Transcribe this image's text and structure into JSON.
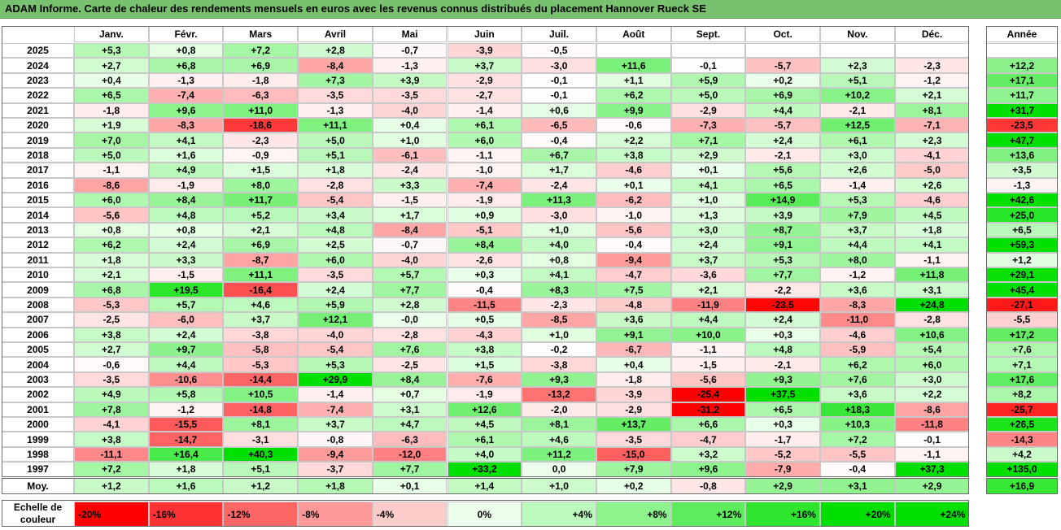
{
  "title": "ADAM Informe. Carte de chaleur des rendements mensuels en euros avec les revenus connus distribués du placement Hannover Rueck SE",
  "chart_data": {
    "type": "heatmap",
    "columns": [
      "Janv.",
      "Févr.",
      "Mars",
      "Avril",
      "Mai",
      "Juin",
      "Juil.",
      "Août",
      "Sept.",
      "Oct.",
      "Nov.",
      "Déc."
    ],
    "year_column": "Année",
    "rows": [
      {
        "label": "2025",
        "values": [
          "+5,3",
          "+0,8",
          "+7,2",
          "+2,8",
          "-0,7",
          "-3,9",
          "-0,5",
          "",
          "",
          "",
          "",
          ""
        ],
        "year": ""
      },
      {
        "label": "2024",
        "values": [
          "+2,7",
          "+6,8",
          "+6,9",
          "-8,4",
          "-1,3",
          "+3,7",
          "-3,0",
          "+11,6",
          "-0,1",
          "-5,7",
          "+2,3",
          "-2,3"
        ],
        "year": "+12,2"
      },
      {
        "label": "2023",
        "values": [
          "+0,4",
          "-1,3",
          "-1,8",
          "+7,3",
          "+3,9",
          "-2,9",
          "-0,1",
          "+1,1",
          "+5,9",
          "+0,2",
          "+5,1",
          "-1,2"
        ],
        "year": "+17,1"
      },
      {
        "label": "2022",
        "values": [
          "+6,5",
          "-7,4",
          "-6,3",
          "-3,5",
          "-3,5",
          "-2,7",
          "-0,1",
          "+6,2",
          "+5,0",
          "+6,9",
          "+10,2",
          "+2,1"
        ],
        "year": "+11,7"
      },
      {
        "label": "2021",
        "values": [
          "-1,8",
          "+9,6",
          "+11,0",
          "-1,3",
          "-4,0",
          "-1,4",
          "+0,6",
          "+9,9",
          "-2,9",
          "+4,4",
          "-2,1",
          "+8,1"
        ],
        "year": "+31,7"
      },
      {
        "label": "2020",
        "values": [
          "+1,9",
          "-8,3",
          "-18,6",
          "+11,1",
          "+0,4",
          "+6,1",
          "-6,5",
          "-0,6",
          "-7,3",
          "-5,7",
          "+12,5",
          "-7,1"
        ],
        "year": "-23,5"
      },
      {
        "label": "2019",
        "values": [
          "+7,0",
          "+4,1",
          "-2,3",
          "+5,0",
          "+1,0",
          "+6,0",
          "-0,4",
          "+2,2",
          "+7,1",
          "+2,4",
          "+6,1",
          "+2,3"
        ],
        "year": "+47,7"
      },
      {
        "label": "2018",
        "values": [
          "+5,0",
          "+1,6",
          "-0,9",
          "+5,1",
          "-6,1",
          "-1,1",
          "+6,7",
          "+3,8",
          "+2,9",
          "-2,1",
          "+3,0",
          "-4,1"
        ],
        "year": "+13,6"
      },
      {
        "label": "2017",
        "values": [
          "-1,1",
          "+4,9",
          "+1,5",
          "+1,8",
          "-2,4",
          "-1,0",
          "+1,7",
          "-4,6",
          "+0,1",
          "+5,6",
          "+2,6",
          "-5,0"
        ],
        "year": "+3,5"
      },
      {
        "label": "2016",
        "values": [
          "-8,6",
          "-1,9",
          "+8,0",
          "-2,8",
          "+3,3",
          "-7,4",
          "-2,4",
          "+0,1",
          "+4,1",
          "+6,5",
          "-1,4",
          "+2,6"
        ],
        "year": "-1,3"
      },
      {
        "label": "2015",
        "values": [
          "+6,0",
          "+8,4",
          "+11,7",
          "-5,4",
          "-1,5",
          "-1,9",
          "+11,3",
          "-6,2",
          "+1,0",
          "+14,9",
          "+5,3",
          "-4,6"
        ],
        "year": "+42,6"
      },
      {
        "label": "2014",
        "values": [
          "-5,6",
          "+4,8",
          "+5,2",
          "+3,4",
          "+1,7",
          "+0,9",
          "-3,0",
          "-1,0",
          "+1,3",
          "+3,9",
          "+7,9",
          "+4,5"
        ],
        "year": "+25,0"
      },
      {
        "label": "2013",
        "values": [
          "+0,8",
          "+0,8",
          "+2,1",
          "+4,8",
          "-8,4",
          "-5,1",
          "+1,0",
          "-5,6",
          "+3,0",
          "+8,7",
          "+3,7",
          "+1,8"
        ],
        "year": "+6,5"
      },
      {
        "label": "2012",
        "values": [
          "+6,2",
          "+2,4",
          "+6,9",
          "+2,5",
          "-0,7",
          "+8,4",
          "+4,0",
          "-0,4",
          "+2,4",
          "+9,1",
          "+4,4",
          "+4,1"
        ],
        "year": "+59,3"
      },
      {
        "label": "2011",
        "values": [
          "+1,8",
          "+3,3",
          "-8,7",
          "+6,0",
          "-4,0",
          "-2,6",
          "+0,8",
          "-9,4",
          "+3,7",
          "+5,3",
          "+8,0",
          "-1,1"
        ],
        "year": "+1,2"
      },
      {
        "label": "2010",
        "values": [
          "+2,1",
          "-1,5",
          "+11,1",
          "-3,5",
          "+5,7",
          "+0,3",
          "+4,1",
          "-4,7",
          "-3,6",
          "+7,7",
          "-1,2",
          "+11,8"
        ],
        "year": "+29,1"
      },
      {
        "label": "2009",
        "values": [
          "+6,8",
          "+19,5",
          "-16,4",
          "+2,4",
          "+7,7",
          "-0,4",
          "+8,3",
          "+7,5",
          "+2,1",
          "-2,2",
          "+3,6",
          "+3,1"
        ],
        "year": "+45,4"
      },
      {
        "label": "2008",
        "values": [
          "-5,3",
          "+5,7",
          "+4,6",
          "+5,9",
          "+2,8",
          "-11,5",
          "-2,3",
          "-4,8",
          "-11,9",
          "-23,5",
          "-8,3",
          "+24,8"
        ],
        "year": "-27,1"
      },
      {
        "label": "2007",
        "values": [
          "-2,5",
          "-6,0",
          "+3,7",
          "+12,1",
          "-0,0",
          "+0,5",
          "-8,5",
          "+3,6",
          "+4,4",
          "+2,4",
          "-11,0",
          "-2,8"
        ],
        "year": "-5,5"
      },
      {
        "label": "2006",
        "values": [
          "+3,8",
          "+2,4",
          "-3,8",
          "-4,0",
          "-2,8",
          "-4,3",
          "+1,0",
          "+9,1",
          "+10,0",
          "+0,3",
          "-4,6",
          "+10,6"
        ],
        "year": "+17,2"
      },
      {
        "label": "2005",
        "values": [
          "+2,7",
          "+9,7",
          "-5,8",
          "-5,4",
          "+7,6",
          "+3,8",
          "-0,2",
          "-6,7",
          "-1,1",
          "+4,8",
          "-5,9",
          "+5,4"
        ],
        "year": "+7,6"
      },
      {
        "label": "2004",
        "values": [
          "-0,6",
          "+4,4",
          "-5,3",
          "+5,3",
          "-2,5",
          "+1,5",
          "-3,8",
          "+0,4",
          "-1,5",
          "-2,1",
          "+6,2",
          "+6,0"
        ],
        "year": "+7,1"
      },
      {
        "label": "2003",
        "values": [
          "-3,5",
          "-10,6",
          "-14,4",
          "+29,9",
          "+8,4",
          "-7,6",
          "+9,3",
          "-1,8",
          "-5,6",
          "+9,3",
          "+7,6",
          "+3,0"
        ],
        "year": "+17,6"
      },
      {
        "label": "2002",
        "values": [
          "+4,9",
          "+5,8",
          "+10,5",
          "-1,4",
          "+0,7",
          "-1,9",
          "-13,2",
          "-3,9",
          "-25,4",
          "+37,5",
          "+3,6",
          "+2,2"
        ],
        "year": "+8,2"
      },
      {
        "label": "2001",
        "values": [
          "+7,8",
          "-1,2",
          "-14,8",
          "-7,4",
          "+3,1",
          "+12,6",
          "-2,0",
          "-2,9",
          "-31,2",
          "+6,5",
          "+18,3",
          "-8,6"
        ],
        "year": "-25,7"
      },
      {
        "label": "2000",
        "values": [
          "-4,1",
          "-15,5",
          "+8,1",
          "+3,7",
          "+4,7",
          "+4,5",
          "+8,1",
          "+13,7",
          "+6,6",
          "+0,3",
          "+10,3",
          "-11,8"
        ],
        "year": "+26,5"
      },
      {
        "label": "1999",
        "values": [
          "+3,8",
          "-14,7",
          "-3,1",
          "-0,8",
          "-6,3",
          "+6,1",
          "+4,6",
          "-3,5",
          "-4,7",
          "-1,7",
          "+7,2",
          "-0,1"
        ],
        "year": "-14,3"
      },
      {
        "label": "1998",
        "values": [
          "-11,1",
          "+16,4",
          "+40,3",
          "-9,4",
          "-12,0",
          "+4,0",
          "+11,2",
          "-15,0",
          "+3,2",
          "-5,2",
          "-5,5",
          "-1,1"
        ],
        "year": "+4,2"
      },
      {
        "label": "1997",
        "values": [
          "+7,2",
          "+1,8",
          "+5,1",
          "-3,7",
          "+7,7",
          "+33,2",
          "0,0",
          "+7,9",
          "+9,6",
          "-7,9",
          "-0,4",
          "+37,3"
        ],
        "year": "+135,0"
      }
    ],
    "average": {
      "label": "Moy.",
      "values": [
        "+1,2",
        "+1,6",
        "+1,2",
        "+1,8",
        "+0,1",
        "+1,4",
        "+1,0",
        "+0,2",
        "-0,8",
        "+2,9",
        "+3,1",
        "+2,9"
      ],
      "year": "+16,9"
    },
    "legend": {
      "title": "Echelle de couleur",
      "labels": [
        "-20%",
        "-16%",
        "-12%",
        "-8%",
        "-4%",
        "0%",
        "+4%",
        "+8%",
        "+12%",
        "+16%",
        "+20%",
        "+24%"
      ],
      "values": [
        -20,
        -16,
        -12,
        -8,
        -4,
        0,
        4,
        8,
        12,
        16,
        20,
        24
      ]
    },
    "colors": {
      "negative_max": "#ff0000",
      "neutral": "#ffffff",
      "positive_max": "#00e000",
      "title_bar": "#78c26f"
    }
  }
}
